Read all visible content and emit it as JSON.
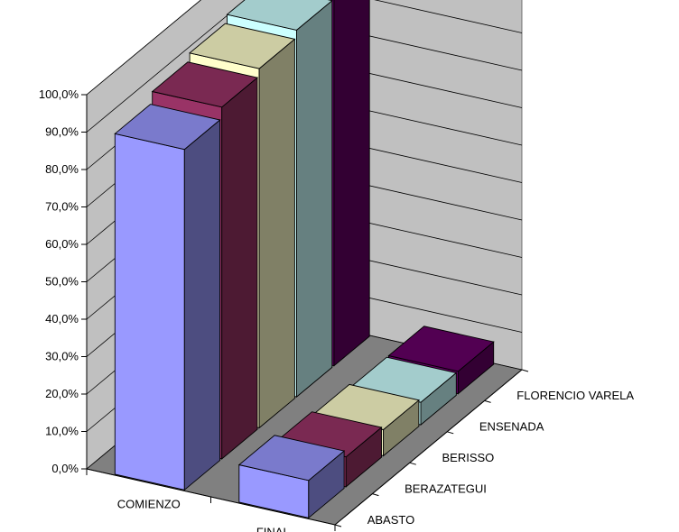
{
  "chart_data": {
    "type": "bar",
    "variant": "3d-column",
    "title": "",
    "xlabel": "",
    "ylabel": "",
    "ylim": [
      0,
      100
    ],
    "y_ticks": [
      "0,0%",
      "10,0%",
      "20,0%",
      "30,0%",
      "40,0%",
      "50,0%",
      "60,0%",
      "70,0%",
      "80,0%",
      "90,0%",
      "100,0%"
    ],
    "categories": [
      "COMIENZO",
      "FINAL"
    ],
    "series": [
      {
        "name": "ABASTO",
        "color": "#9999ff",
        "values": [
          91,
          10
        ]
      },
      {
        "name": "BERAZATEGUI",
        "color": "#993366",
        "values": [
          94,
          8
        ]
      },
      {
        "name": "BERISSO",
        "color": "#ffffcc",
        "values": [
          96,
          7
        ]
      },
      {
        "name": "ENSENADA",
        "color": "#ccffff",
        "values": [
          98,
          6
        ]
      },
      {
        "name": "FLORENCIO VARELA",
        "color": "#660066",
        "values": [
          100,
          6
        ]
      }
    ],
    "grid": true,
    "legend": "none"
  }
}
